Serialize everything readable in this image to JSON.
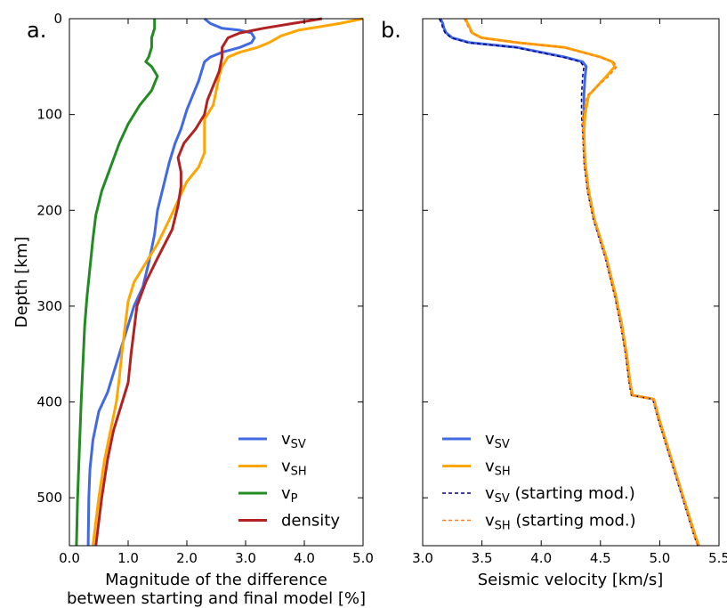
{
  "chart_data": [
    {
      "type": "line",
      "panel_label": "a.",
      "xlabel_line1": "Magnitude of the difference",
      "xlabel_line2": "between starting and final model [%]",
      "ylabel": "Depth [km]",
      "xlim": [
        0.0,
        5.0
      ],
      "ylim": [
        550,
        0
      ],
      "y_inverted": true,
      "grid": false,
      "legend_position": "lower-right",
      "xticks": [
        0.0,
        1.0,
        2.0,
        3.0,
        4.0,
        5.0
      ],
      "xtick_labels": [
        "0.0",
        "1.0",
        "2.0",
        "3.0",
        "4.0",
        "5.0"
      ],
      "yticks": [
        0,
        100,
        200,
        300,
        400,
        500
      ],
      "ytick_labels": [
        "0",
        "100",
        "200",
        "300",
        "400",
        "500"
      ],
      "series": [
        {
          "name": "v",
          "sub": "SV",
          "color": "#4169e1",
          "style": "solid",
          "points": [
            [
              2.3,
              0
            ],
            [
              2.4,
              5
            ],
            [
              2.6,
              10
            ],
            [
              2.9,
              12
            ],
            [
              3.1,
              15
            ],
            [
              3.15,
              20
            ],
            [
              3.1,
              25
            ],
            [
              2.9,
              30
            ],
            [
              2.6,
              35
            ],
            [
              2.4,
              40
            ],
            [
              2.3,
              45
            ],
            [
              2.25,
              55
            ],
            [
              2.2,
              65
            ],
            [
              2.1,
              80
            ],
            [
              2.0,
              95
            ],
            [
              1.9,
              115
            ],
            [
              1.8,
              130
            ],
            [
              1.7,
              150
            ],
            [
              1.6,
              175
            ],
            [
              1.5,
              200
            ],
            [
              1.45,
              225
            ],
            [
              1.35,
              255
            ],
            [
              1.25,
              280
            ],
            [
              1.1,
              300
            ],
            [
              0.95,
              330
            ],
            [
              0.8,
              360
            ],
            [
              0.65,
              390
            ],
            [
              0.5,
              410
            ],
            [
              0.4,
              440
            ],
            [
              0.35,
              470
            ],
            [
              0.33,
              500
            ],
            [
              0.32,
              550
            ]
          ]
        },
        {
          "name": "v",
          "sub": "SH",
          "color": "#ffa500",
          "style": "solid",
          "points": [
            [
              5.0,
              0
            ],
            [
              4.6,
              5
            ],
            [
              4.3,
              8
            ],
            [
              3.9,
              12
            ],
            [
              3.6,
              18
            ],
            [
              3.4,
              25
            ],
            [
              3.2,
              30
            ],
            [
              2.9,
              35
            ],
            [
              2.7,
              40
            ],
            [
              2.6,
              50
            ],
            [
              2.55,
              60
            ],
            [
              2.5,
              75
            ],
            [
              2.45,
              90
            ],
            [
              2.3,
              105
            ],
            [
              2.3,
              125
            ],
            [
              2.3,
              140
            ],
            [
              2.2,
              155
            ],
            [
              2.0,
              170
            ],
            [
              1.85,
              190
            ],
            [
              1.7,
              210
            ],
            [
              1.5,
              235
            ],
            [
              1.3,
              255
            ],
            [
              1.1,
              275
            ],
            [
              1.0,
              295
            ],
            [
              0.95,
              320
            ],
            [
              0.9,
              345
            ],
            [
              0.85,
              375
            ],
            [
              0.8,
              400
            ],
            [
              0.7,
              430
            ],
            [
              0.6,
              460
            ],
            [
              0.5,
              500
            ],
            [
              0.4,
              550
            ]
          ]
        },
        {
          "name": "v",
          "sub": "P",
          "color": "#228b22",
          "style": "solid",
          "points": [
            [
              1.45,
              0
            ],
            [
              1.45,
              10
            ],
            [
              1.4,
              20
            ],
            [
              1.4,
              30
            ],
            [
              1.35,
              40
            ],
            [
              1.3,
              45
            ],
            [
              1.4,
              50
            ],
            [
              1.5,
              60
            ],
            [
              1.4,
              75
            ],
            [
              1.2,
              90
            ],
            [
              1.0,
              110
            ],
            [
              0.85,
              130
            ],
            [
              0.7,
              155
            ],
            [
              0.55,
              180
            ],
            [
              0.45,
              205
            ],
            [
              0.4,
              230
            ],
            [
              0.35,
              260
            ],
            [
              0.3,
              290
            ],
            [
              0.26,
              320
            ],
            [
              0.23,
              360
            ],
            [
              0.2,
              400
            ],
            [
              0.17,
              450
            ],
            [
              0.14,
              500
            ],
            [
              0.12,
              550
            ]
          ]
        },
        {
          "name": "density",
          "sub": "",
          "color": "#b22222",
          "style": "solid",
          "points": [
            [
              4.3,
              0
            ],
            [
              3.8,
              5
            ],
            [
              3.3,
              10
            ],
            [
              2.9,
              15
            ],
            [
              2.7,
              20
            ],
            [
              2.6,
              30
            ],
            [
              2.6,
              40
            ],
            [
              2.55,
              55
            ],
            [
              2.45,
              70
            ],
            [
              2.35,
              85
            ],
            [
              2.3,
              100
            ],
            [
              2.15,
              115
            ],
            [
              1.95,
              130
            ],
            [
              1.85,
              145
            ],
            [
              1.9,
              160
            ],
            [
              1.9,
              175
            ],
            [
              1.85,
              195
            ],
            [
              1.75,
              220
            ],
            [
              1.5,
              250
            ],
            [
              1.3,
              275
            ],
            [
              1.15,
              300
            ],
            [
              1.1,
              325
            ],
            [
              1.05,
              350
            ],
            [
              1.0,
              380
            ],
            [
              0.9,
              400
            ],
            [
              0.75,
              430
            ],
            [
              0.65,
              460
            ],
            [
              0.55,
              500
            ],
            [
              0.45,
              550
            ]
          ]
        }
      ]
    },
    {
      "type": "line",
      "panel_label": "b.",
      "xlabel": "Seismic velocity [km/s]",
      "xlim": [
        3.0,
        5.5
      ],
      "ylim": [
        550,
        0
      ],
      "y_inverted": true,
      "grid": false,
      "legend_position": "lower-left",
      "xticks": [
        3.0,
        3.5,
        4.0,
        4.5,
        5.0,
        5.5
      ],
      "xtick_labels": [
        "3.0",
        "3.5",
        "4.0",
        "4.5",
        "5.0",
        "5.5"
      ],
      "yticks": [
        0,
        100,
        200,
        300,
        400,
        500
      ],
      "ytick_labels": [
        "",
        "",
        "",
        "",
        "",
        ""
      ],
      "series": [
        {
          "name": "v",
          "sub": "SV",
          "suffix": "",
          "color": "#4169e1",
          "style": "solid",
          "points": [
            [
              3.15,
              0
            ],
            [
              3.17,
              5
            ],
            [
              3.18,
              10
            ],
            [
              3.2,
              15
            ],
            [
              3.25,
              20
            ],
            [
              3.4,
              25
            ],
            [
              3.8,
              30
            ],
            [
              4.2,
              40
            ],
            [
              4.35,
              45
            ],
            [
              4.38,
              50
            ],
            [
              4.37,
              60
            ],
            [
              4.36,
              80
            ],
            [
              4.36,
              100
            ],
            [
              4.36,
              120
            ],
            [
              4.37,
              150
            ],
            [
              4.4,
              180
            ],
            [
              4.45,
              210
            ],
            [
              4.55,
              250
            ],
            [
              4.63,
              290
            ],
            [
              4.68,
              320
            ],
            [
              4.72,
              350
            ],
            [
              4.75,
              380
            ],
            [
              4.77,
              393
            ],
            [
              4.95,
              397
            ],
            [
              5.0,
              420
            ],
            [
              5.1,
              460
            ],
            [
              5.2,
              500
            ],
            [
              5.3,
              540
            ],
            [
              5.33,
              550
            ]
          ]
        },
        {
          "name": "v",
          "sub": "SH",
          "suffix": "",
          "color": "#ffa500",
          "style": "solid",
          "points": [
            [
              3.36,
              0
            ],
            [
              3.38,
              5
            ],
            [
              3.4,
              10
            ],
            [
              3.42,
              15
            ],
            [
              3.5,
              20
            ],
            [
              3.8,
              25
            ],
            [
              4.2,
              30
            ],
            [
              4.5,
              40
            ],
            [
              4.6,
              45
            ],
            [
              4.62,
              50
            ],
            [
              4.55,
              60
            ],
            [
              4.4,
              80
            ],
            [
              4.37,
              100
            ],
            [
              4.36,
              120
            ],
            [
              4.37,
              150
            ],
            [
              4.4,
              180
            ],
            [
              4.45,
              210
            ],
            [
              4.55,
              250
            ],
            [
              4.63,
              290
            ],
            [
              4.68,
              320
            ],
            [
              4.72,
              350
            ],
            [
              4.75,
              380
            ],
            [
              4.77,
              393
            ],
            [
              4.95,
              397
            ],
            [
              5.0,
              420
            ],
            [
              5.1,
              460
            ],
            [
              5.2,
              500
            ],
            [
              5.3,
              540
            ],
            [
              5.33,
              550
            ]
          ]
        },
        {
          "name": "v",
          "sub": "SV",
          "suffix": " (starting mod.)",
          "color": "#000080",
          "style": "dashed",
          "points": [
            [
              3.14,
              0
            ],
            [
              3.16,
              5
            ],
            [
              3.17,
              10
            ],
            [
              3.19,
              15
            ],
            [
              3.24,
              20
            ],
            [
              3.38,
              25
            ],
            [
              3.78,
              30
            ],
            [
              4.18,
              40
            ],
            [
              4.33,
              45
            ],
            [
              4.36,
              50
            ],
            [
              4.35,
              60
            ],
            [
              4.34,
              80
            ],
            [
              4.34,
              100
            ],
            [
              4.35,
              120
            ],
            [
              4.36,
              150
            ],
            [
              4.39,
              180
            ],
            [
              4.44,
              210
            ],
            [
              4.54,
              250
            ],
            [
              4.62,
              290
            ],
            [
              4.67,
              320
            ],
            [
              4.71,
              350
            ],
            [
              4.74,
              380
            ],
            [
              4.76,
              393
            ],
            [
              4.94,
              397
            ],
            [
              4.99,
              420
            ],
            [
              5.09,
              460
            ],
            [
              5.19,
              500
            ],
            [
              5.29,
              540
            ],
            [
              5.32,
              550
            ]
          ]
        },
        {
          "name": "v",
          "sub": "SH",
          "suffix": " (starting mod.)",
          "color": "#ff7f27",
          "style": "dashed",
          "points": [
            [
              3.35,
              0
            ],
            [
              3.37,
              5
            ],
            [
              3.39,
              10
            ],
            [
              3.41,
              15
            ],
            [
              3.49,
              20
            ],
            [
              3.79,
              25
            ],
            [
              4.19,
              30
            ],
            [
              4.49,
              40
            ],
            [
              4.61,
              45
            ],
            [
              4.64,
              50
            ],
            [
              4.57,
              60
            ],
            [
              4.39,
              80
            ],
            [
              4.35,
              100
            ],
            [
              4.35,
              120
            ],
            [
              4.36,
              150
            ],
            [
              4.39,
              180
            ],
            [
              4.44,
              210
            ],
            [
              4.54,
              250
            ],
            [
              4.62,
              290
            ],
            [
              4.67,
              320
            ],
            [
              4.71,
              350
            ],
            [
              4.74,
              380
            ],
            [
              4.76,
              393
            ],
            [
              4.94,
              397
            ],
            [
              4.99,
              420
            ],
            [
              5.09,
              460
            ],
            [
              5.19,
              500
            ],
            [
              5.29,
              540
            ],
            [
              5.32,
              550
            ]
          ]
        }
      ]
    }
  ]
}
